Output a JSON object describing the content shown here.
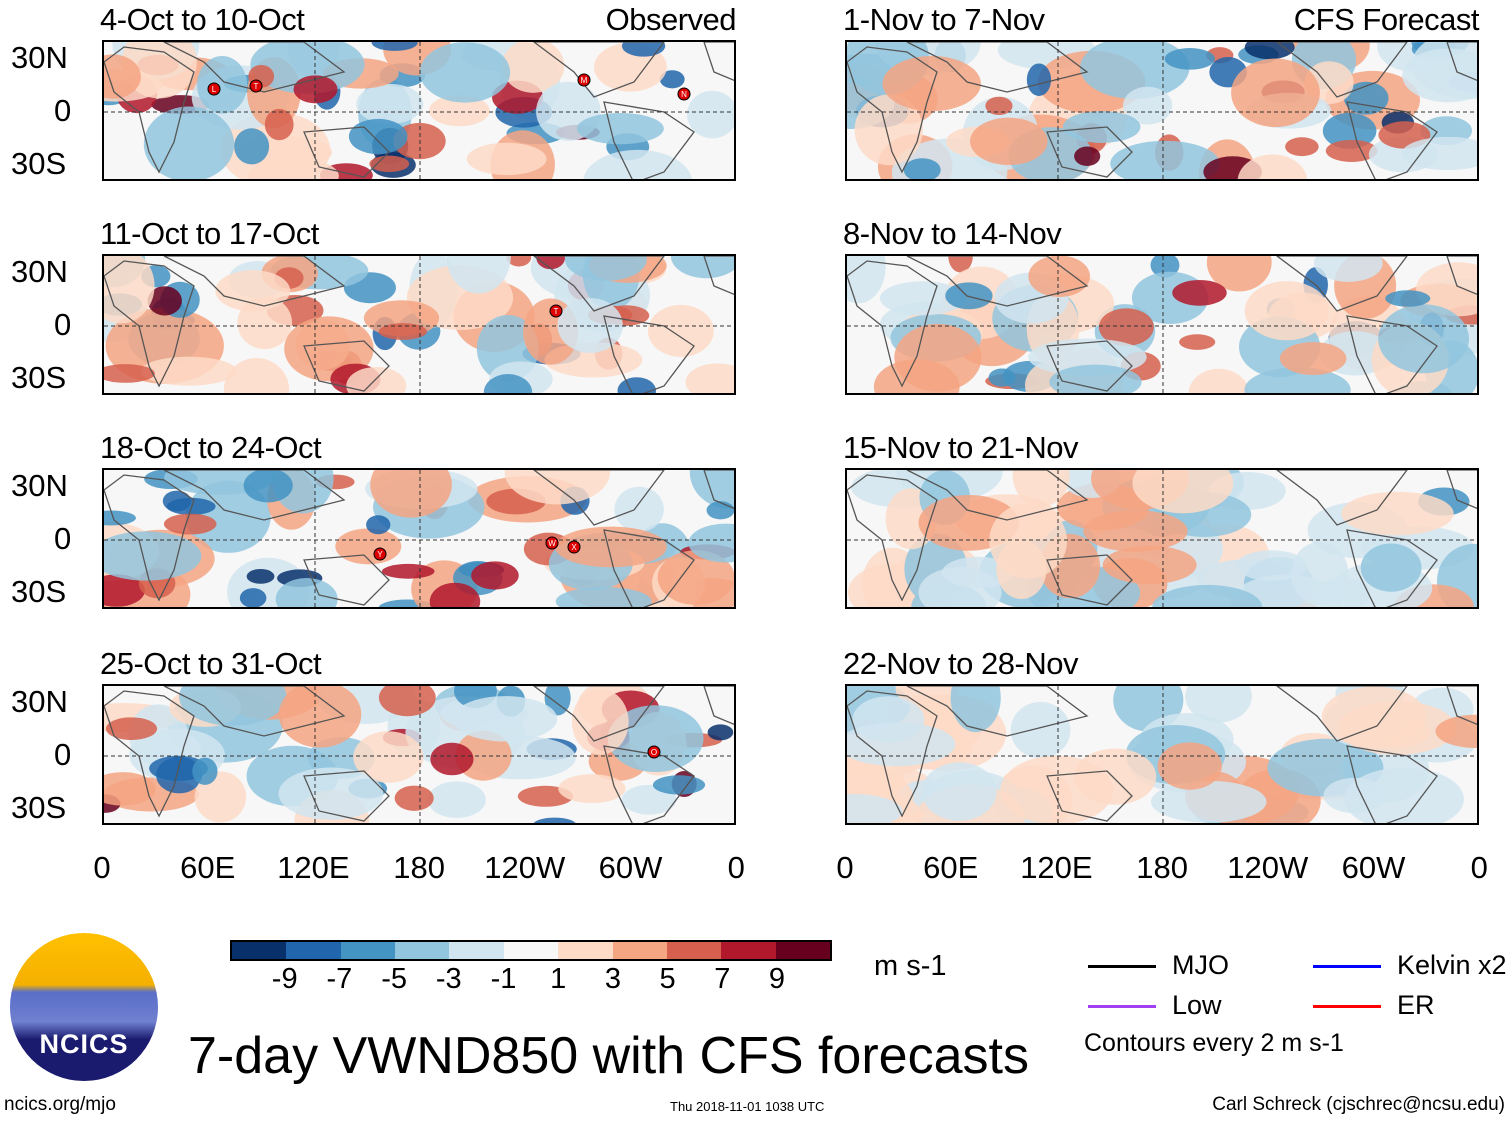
{
  "figure": {
    "title": "7-day VWND850 with CFS forecasts",
    "source_url": "ncics.org/mjo",
    "timestamp": "Thu 2018-11-01 1038 UTC",
    "author": "Carl Schreck (cjschrec@ncsu.edu)",
    "logo_text": "NCICS"
  },
  "columns": {
    "left_label": "Observed",
    "right_label": "CFS Forecast"
  },
  "panels_left": [
    {
      "period": "4-Oct to 10-Oct",
      "storms": [
        "L",
        "T",
        "M",
        "N"
      ]
    },
    {
      "period": "11-Oct to 17-Oct",
      "storms": [
        "T"
      ]
    },
    {
      "period": "18-Oct to 24-Oct",
      "storms": [
        "Y",
        "W",
        "X"
      ]
    },
    {
      "period": "25-Oct to 31-Oct",
      "storms": [
        "O"
      ]
    }
  ],
  "panels_right": [
    {
      "period": "1-Nov to 7-Nov"
    },
    {
      "period": "8-Nov to 14-Nov"
    },
    {
      "period": "15-Nov to 21-Nov"
    },
    {
      "period": "22-Nov to 28-Nov"
    }
  ],
  "axes": {
    "lat_ticks": [
      "30N",
      "0",
      "30S"
    ],
    "lon_ticks": [
      "0",
      "60E",
      "120E",
      "180",
      "120W",
      "60W",
      "0"
    ]
  },
  "colorbar": {
    "unit": "m s-1",
    "labels": [
      "-9",
      "-7",
      "-5",
      "-3",
      "-1",
      "1",
      "3",
      "5",
      "7",
      "9"
    ],
    "colors": [
      "#08306b",
      "#2166ac",
      "#4393c3",
      "#92c5de",
      "#d1e5f0",
      "#f7f7f7",
      "#fddbc7",
      "#f4a582",
      "#d6604d",
      "#b2182b",
      "#67001f"
    ]
  },
  "legend": {
    "items": [
      {
        "label": "MJO",
        "color": "#000000"
      },
      {
        "label": "Kelvin x2",
        "color": "#0000ff"
      },
      {
        "label": "Low",
        "color": "#a040f0"
      },
      {
        "label": "ER",
        "color": "#ff0000"
      }
    ],
    "note": "Contours every 2 m s-1"
  }
}
